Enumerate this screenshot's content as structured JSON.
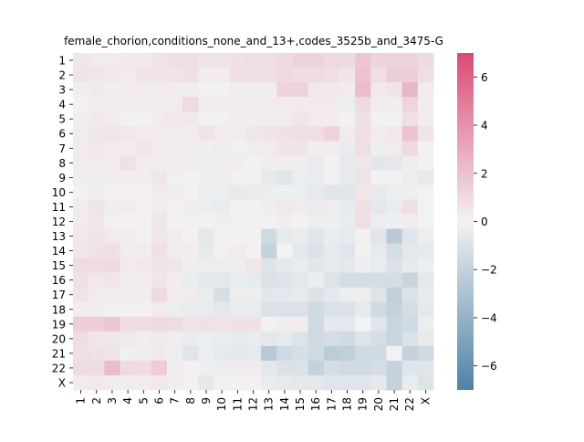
{
  "chart_data": {
    "type": "heatmap",
    "title": "female_chorion,conditions_none_and_13+,codes_3525b_and_3475-G",
    "xlabel": "",
    "ylabel": "",
    "x_categories": [
      "1",
      "2",
      "3",
      "4",
      "5",
      "6",
      "7",
      "8",
      "9",
      "10",
      "11",
      "12",
      "13",
      "14",
      "15",
      "16",
      "17",
      "18",
      "19",
      "20",
      "21",
      "22",
      "X"
    ],
    "y_categories": [
      "1",
      "2",
      "3",
      "4",
      "5",
      "6",
      "7",
      "8",
      "9",
      "10",
      "11",
      "12",
      "13",
      "14",
      "15",
      "16",
      "17",
      "18",
      "19",
      "20",
      "21",
      "22",
      "X"
    ],
    "values": [
      [
        0.5,
        0.3,
        0.3,
        0.4,
        0.4,
        0.6,
        0.8,
        0.8,
        0.6,
        0.6,
        0.7,
        0.8,
        0.8,
        1.0,
        1.3,
        1.3,
        1.0,
        1.0,
        1.8,
        1.3,
        1.3,
        1.3,
        1.0
      ],
      [
        0.6,
        0.5,
        0.4,
        0.3,
        0.6,
        0.6,
        0.6,
        0.8,
        0.2,
        0.3,
        0.8,
        0.8,
        0.8,
        1.0,
        0.9,
        0.9,
        0.8,
        0.6,
        2.0,
        0.8,
        1.5,
        1.5,
        0.8
      ],
      [
        0.2,
        0.4,
        0.2,
        0.3,
        0.3,
        0.3,
        0.2,
        0.2,
        0.1,
        0.1,
        0.2,
        0.2,
        0.2,
        1.3,
        1.3,
        0.4,
        0.4,
        0.3,
        2.2,
        0.4,
        0.6,
        2.5,
        0.3
      ],
      [
        0.1,
        0.2,
        0.2,
        0.2,
        0.2,
        0.3,
        0.3,
        1.0,
        0.2,
        0.2,
        0.2,
        0.2,
        0.3,
        0.3,
        0.3,
        0.3,
        0.3,
        -0.3,
        1.0,
        0.2,
        0.2,
        1.2,
        0.2
      ],
      [
        0.2,
        0.4,
        0.3,
        0.1,
        0.1,
        0.3,
        0.4,
        0.4,
        0.1,
        0.1,
        0.2,
        0.2,
        0.2,
        0.3,
        0.5,
        0.3,
        0.2,
        0.1,
        0.7,
        0.1,
        0.1,
        0.8,
        0.2
      ],
      [
        0.3,
        0.5,
        0.5,
        0.4,
        0.3,
        0.3,
        0.3,
        0.2,
        0.6,
        0.3,
        0.3,
        0.5,
        0.6,
        0.7,
        0.8,
        0.8,
        1.3,
        0.3,
        0.8,
        0.3,
        0.4,
        2.0,
        0.6
      ],
      [
        0.3,
        0.4,
        0.3,
        0.2,
        0.5,
        0.2,
        0.2,
        0.2,
        -0.2,
        0.2,
        -0.1,
        0.2,
        0.3,
        0.6,
        0.6,
        0.2,
        0.2,
        -0.4,
        0.8,
        -0.2,
        0.3,
        1.0,
        0.1
      ],
      [
        0.3,
        0.3,
        0.3,
        0.7,
        0.3,
        0.2,
        0.2,
        0.2,
        0.2,
        0.2,
        0.2,
        0.1,
        0.2,
        0.2,
        0.2,
        -0.4,
        0.1,
        -0.5,
        0.5,
        -0.7,
        -0.6,
        0.3,
        0.1
      ],
      [
        0.2,
        -0.2,
        0.2,
        0.3,
        0.2,
        0.5,
        -0.1,
        0.1,
        -0.2,
        -0.2,
        0.1,
        0.1,
        -0.5,
        -0.8,
        -0.3,
        -0.4,
        0.1,
        -0.5,
        0.6,
        0.1,
        0.1,
        -0.3,
        -0.5
      ],
      [
        0.1,
        0.2,
        0.1,
        0.1,
        0.1,
        0.3,
        0.2,
        0.1,
        -0.3,
        -0.3,
        -0.5,
        -0.4,
        -0.3,
        -0.2,
        -0.3,
        -0.5,
        -0.8,
        -0.8,
        0.5,
        -0.5,
        -0.3,
        -0.2,
        0.0
      ],
      [
        0.3,
        0.6,
        0.2,
        0.3,
        0.1,
        0.3,
        0.1,
        0.2,
        -0.3,
        -0.4,
        0.1,
        0.1,
        0.2,
        0.4,
        0.3,
        -0.4,
        0.3,
        -0.5,
        0.8,
        -0.6,
        -0.4,
        0.8,
        0.0
      ],
      [
        0.3,
        0.5,
        0.1,
        0.1,
        0.1,
        0.5,
        0.1,
        0.1,
        0.1,
        -0.2,
        0.1,
        0.1,
        0.1,
        0.2,
        0.1,
        -0.3,
        -0.2,
        -0.4,
        0.8,
        -0.3,
        -0.2,
        0.3,
        0.0
      ],
      [
        0.4,
        0.6,
        0.3,
        0.3,
        0.1,
        0.5,
        0.3,
        0.1,
        -0.6,
        0.1,
        0.1,
        0.1,
        -1.5,
        -0.5,
        -0.4,
        -0.8,
        -0.4,
        -0.5,
        0.1,
        -0.8,
        -2.5,
        -0.8,
        -0.3
      ],
      [
        0.5,
        0.7,
        0.8,
        0.2,
        0.2,
        0.7,
        0.3,
        0.2,
        -0.5,
        -0.1,
        0.3,
        0.1,
        -2.0,
        0.0,
        -0.6,
        -1.0,
        -0.5,
        -0.8,
        0.1,
        -0.5,
        -1.3,
        -0.6,
        -0.5
      ],
      [
        0.9,
        0.9,
        1.0,
        0.3,
        0.4,
        0.6,
        0.5,
        0.2,
        -0.3,
        -0.3,
        0.2,
        0.5,
        -0.9,
        -0.6,
        -0.4,
        -0.7,
        -0.5,
        -0.6,
        -0.2,
        -0.4,
        -1.0,
        -0.5,
        -0.3
      ],
      [
        0.7,
        0.4,
        0.5,
        0.2,
        0.2,
        0.5,
        0.2,
        -0.4,
        -0.6,
        -0.6,
        -0.4,
        -0.5,
        -1.0,
        -0.9,
        -0.7,
        -0.3,
        -0.9,
        -1.3,
        -1.3,
        -1.3,
        -1.3,
        -1.8,
        -0.6
      ],
      [
        0.6,
        0.3,
        0.2,
        0.2,
        0.2,
        1.0,
        0.3,
        0.3,
        -0.4,
        -1.2,
        -0.3,
        -0.3,
        -0.7,
        -0.6,
        -0.5,
        -1.0,
        -0.6,
        -0.3,
        -0.3,
        -0.9,
        -2.2,
        -1.0,
        -0.5
      ],
      [
        0.2,
        0.2,
        0.1,
        0.1,
        0.1,
        0.3,
        -0.3,
        -0.4,
        -0.4,
        -0.6,
        -0.4,
        -0.4,
        -1.0,
        -1.0,
        -1.0,
        -1.5,
        -1.0,
        -1.0,
        -0.5,
        -1.5,
        -2.0,
        -1.3,
        -0.6
      ],
      [
        1.5,
        1.5,
        1.8,
        0.9,
        0.9,
        1.0,
        0.9,
        0.6,
        0.7,
        0.6,
        0.7,
        0.7,
        0.1,
        0.2,
        0.2,
        -1.5,
        -0.6,
        -0.6,
        0.0,
        -0.8,
        -1.8,
        -1.5,
        -0.3
      ],
      [
        0.9,
        0.5,
        0.5,
        0.4,
        0.2,
        0.4,
        0.2,
        -0.4,
        -0.3,
        -0.4,
        -0.5,
        -0.4,
        -0.6,
        -0.5,
        -0.9,
        -1.5,
        -1.3,
        -1.5,
        -0.9,
        -1.3,
        -1.8,
        -1.0,
        -0.5
      ],
      [
        0.8,
        0.7,
        0.6,
        -0.2,
        0.3,
        0.4,
        -0.3,
        -0.8,
        -0.3,
        -0.5,
        -0.6,
        -0.5,
        -2.5,
        -1.5,
        -1.2,
        -1.5,
        -2.3,
        -2.2,
        -1.5,
        -1.5,
        0.0,
        -2.0,
        -1.5
      ],
      [
        0.9,
        0.9,
        2.2,
        1.0,
        0.9,
        1.6,
        0.2,
        0.1,
        -0.2,
        -0.3,
        0.3,
        0.3,
        -0.6,
        -1.0,
        -1.0,
        -2.0,
        -1.3,
        -1.5,
        -1.5,
        -1.3,
        -2.0,
        -0.8,
        -0.8
      ],
      [
        0.3,
        0.4,
        0.3,
        0.3,
        0.3,
        0.4,
        0.2,
        0.1,
        -0.6,
        0.1,
        0.1,
        0.1,
        -0.4,
        -0.5,
        -0.6,
        -0.6,
        -0.8,
        -0.8,
        -0.8,
        -0.6,
        -2.0,
        -0.4,
        -0.9
      ]
    ],
    "colorbar": {
      "range": [
        -7,
        7
      ],
      "ticks": [
        -6,
        -4,
        -2,
        0,
        2,
        4,
        6
      ],
      "tick_labels": [
        "−6",
        "−4",
        "−2",
        "0",
        "2",
        "4",
        "6"
      ],
      "colormap": "diverging",
      "low_color": "#4f82a8",
      "mid_color": "#f2f2f2",
      "high_color": "#da4a74"
    },
    "grid": false
  }
}
